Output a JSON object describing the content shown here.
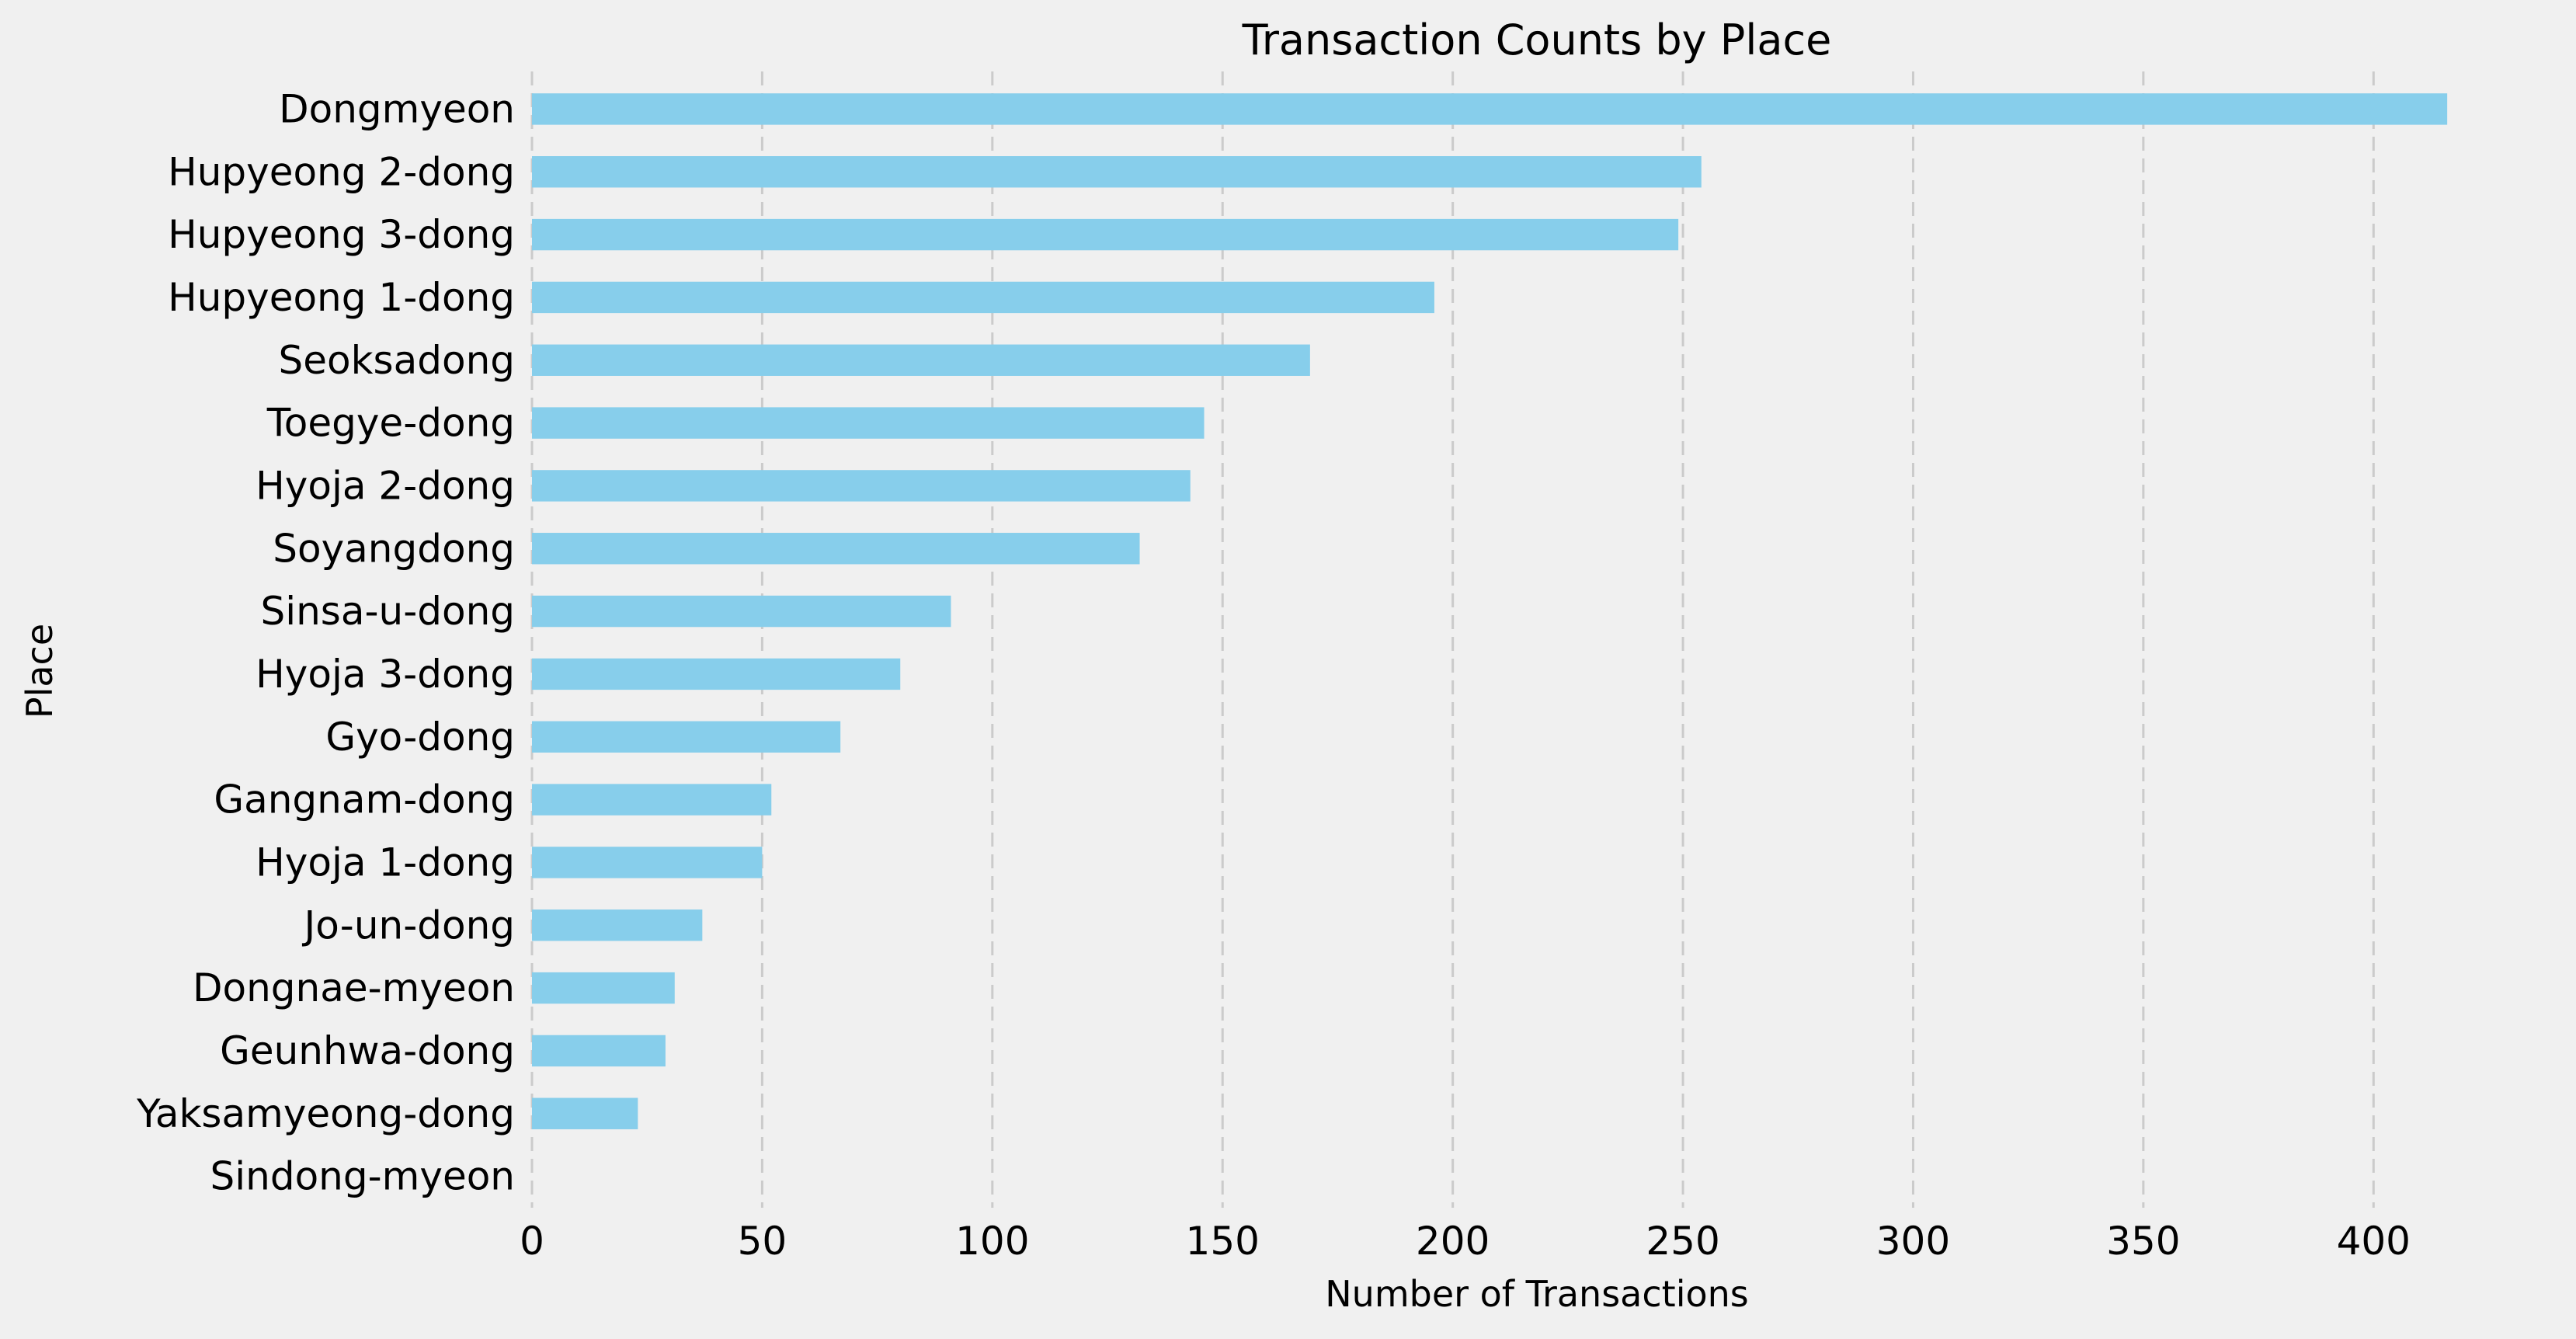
{
  "chart_data": {
    "type": "bar",
    "orientation": "horizontal",
    "title": "Transaction Counts by Place",
    "xlabel": "Number of Transactions",
    "ylabel": "Place",
    "xlim": [
      0,
      418
    ],
    "xticks": [
      0,
      50,
      100,
      150,
      200,
      250,
      300,
      350,
      400
    ],
    "grid": "x-axis dashed",
    "bar_color": "#87ceeb",
    "background_color": "#f0f0f0",
    "categories": [
      "Dongmyeon",
      "Hupyeong 2-dong",
      "Hupyeong 3-dong",
      "Hupyeong 1-dong",
      "Seoksadong",
      "Toegye-dong",
      "Hyoja 2-dong",
      "Soyangdong",
      "Sinsa-u-dong",
      "Hyoja 3-dong",
      "Gyo-dong",
      "Gangnam-dong",
      "Hyoja 1-dong",
      "Jo-un-dong",
      "Dongnae-myeon",
      "Geunhwa-dong",
      "Yaksamyeong-dong",
      "Sindong-myeon"
    ],
    "values": [
      416,
      254,
      249,
      196,
      169,
      146,
      143,
      132,
      91,
      80,
      67,
      52,
      50,
      37,
      31,
      29,
      23,
      0
    ]
  }
}
